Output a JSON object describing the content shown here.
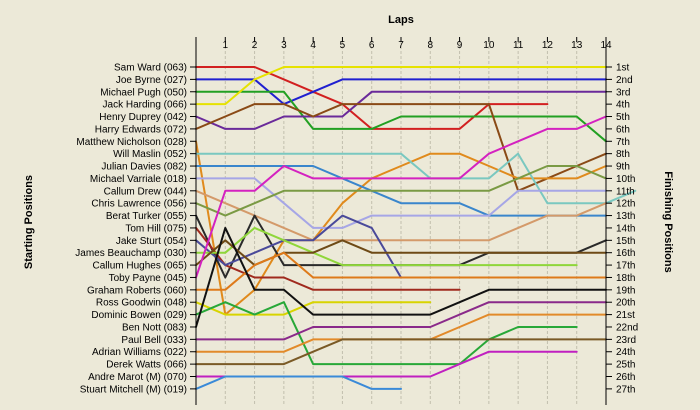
{
  "chart_data": {
    "type": "line",
    "title": "",
    "xlabel": "Laps",
    "ylabel_left": "Starting Positions",
    "ylabel_right": "Finishing Positions",
    "x_ticks": [
      1,
      2,
      3,
      4,
      5,
      6,
      7,
      8,
      9,
      10,
      11,
      12,
      13,
      14
    ],
    "start_labels": [
      "Sam Ward (063)",
      "Joe Byrne (027)",
      "Michael Pugh (050)",
      "Jack Harding (066)",
      "Henry Duprey (042)",
      "Harry Edwards (072)",
      "Matthew Nicholson (028)",
      "Will Maslin (052)",
      "Julian Davies (082)",
      "Michael Varriale (018)",
      "Callum Drew (044)",
      "Chris Lawrence (056)",
      "Berat Turker (055)",
      "Tom Hill (075)",
      "Jake Sturt (054)",
      "James Beauchamp (030)",
      "Callum Hughes (065)",
      "Toby Payne (045)",
      "Graham Roberts (060)",
      "Ross Goodwin (048)",
      "Dominic Bowen (029)",
      "Ben Nott (083)",
      "Paul Bell (033)",
      "Adrian Williams (022)",
      "Derek Watts (066)",
      "Andre Marot  (M) (070)",
      "Stuart Mitchell  (M) (019)"
    ],
    "finish_labels": [
      "1st",
      "2nd",
      "3rd",
      "4th",
      "5th",
      "6th",
      "7th",
      "8th",
      "9th",
      "10th",
      "11th",
      "12th",
      "13th",
      "14th",
      "15th",
      "16th",
      "17th",
      "18th",
      "19th",
      "20th",
      "21st",
      "22nd",
      "23rd",
      "24th",
      "25th",
      "26th",
      "27th"
    ],
    "series": [
      {
        "name": "Sam Ward (063)",
        "color": "#d22020",
        "positions": [
          1,
          1,
          1,
          2,
          3,
          4,
          6,
          6,
          6,
          6,
          4,
          4,
          4
        ]
      },
      {
        "name": "Joe Byrne (027)",
        "color": "#2020d0",
        "positions": [
          2,
          2,
          2,
          4,
          3,
          2,
          2,
          2,
          2,
          2,
          2,
          2,
          2,
          2,
          2
        ]
      },
      {
        "name": "Michael Pugh (050)",
        "color": "#22a022",
        "positions": [
          3,
          3,
          3,
          3,
          6,
          6,
          6,
          5,
          5,
          5,
          5,
          5,
          5,
          5,
          7
        ]
      },
      {
        "name": "Jack Harding (066)",
        "color": "#e6e200",
        "positions": [
          4,
          4,
          2,
          1,
          1,
          1,
          1,
          1,
          1,
          1,
          1,
          1,
          1,
          1,
          1
        ]
      },
      {
        "name": "Henry Duprey (042)",
        "color": "#6a2a9a",
        "positions": [
          5,
          6,
          6,
          5,
          5,
          5,
          3,
          3,
          3,
          3,
          3,
          3,
          3,
          3,
          3
        ]
      },
      {
        "name": "Harry Edwards (072)",
        "color": "#8a4a16",
        "positions": [
          6,
          5,
          4,
          4,
          5,
          4,
          4,
          4,
          4,
          4,
          4,
          11,
          10,
          9,
          8
        ]
      },
      {
        "name": "Matthew Nicholson (028)",
        "color": "#e08a1c",
        "positions": [
          7,
          21,
          19,
          15,
          15,
          12,
          10,
          9,
          8,
          8,
          9,
          10,
          10,
          10,
          9
        ]
      },
      {
        "name": "Will Maslin (052)",
        "color": "#7ac8c0",
        "positions": [
          8,
          8,
          8,
          8,
          8,
          8,
          8,
          8,
          10,
          10,
          10,
          8,
          12,
          12,
          12,
          11
        ]
      },
      {
        "name": "Julian Davies (082)",
        "color": "#3a86cc",
        "positions": [
          9,
          9,
          9,
          9,
          9,
          10,
          11,
          12,
          12,
          12,
          13,
          13,
          13,
          13,
          13
        ]
      },
      {
        "name": "Michael Varriale (018)",
        "color": "#a6a6e6",
        "positions": [
          10,
          10,
          10,
          12,
          14,
          14,
          13,
          13,
          13,
          13,
          13,
          11,
          11,
          11,
          11
        ]
      },
      {
        "name": "Callum Drew (044)",
        "color": "#d49a6a",
        "positions": [
          11,
          12,
          13,
          14,
          15,
          15,
          15,
          15,
          15,
          15,
          15,
          14,
          13,
          13,
          12
        ]
      },
      {
        "name": "Chris Lawrence (056)",
        "color": "#7a9a44",
        "positions": [
          12,
          13,
          12,
          11,
          11,
          11,
          11,
          11,
          11,
          11,
          11,
          10,
          9,
          9,
          10
        ]
      },
      {
        "name": "Berat Turker (055)",
        "color": "#2a2a2a",
        "positions": [
          13,
          18,
          13,
          17,
          17,
          17,
          17,
          17,
          17,
          17,
          16,
          16,
          16,
          16,
          15
        ]
      },
      {
        "name": "Tom Hill (075)",
        "color": "#a02a1e",
        "positions": [
          14,
          17,
          18,
          18,
          19,
          19,
          19,
          19,
          19,
          19
        ]
      },
      {
        "name": "Jake Sturt (054)",
        "color": "#4a4a9a",
        "positions": [
          15,
          17,
          16,
          15,
          15,
          13,
          14,
          18,
          18,
          18,
          18,
          18,
          18,
          18
        ]
      },
      {
        "name": "James Beauchamp (030)",
        "color": "#8fd63a",
        "positions": [
          16,
          16,
          14,
          15,
          16,
          17,
          17,
          17,
          17,
          17,
          17,
          17,
          17,
          17
        ]
      },
      {
        "name": "Callum Hughes (065)",
        "color": "#6e4a16",
        "positions": [
          17,
          15,
          17,
          16,
          16,
          15,
          16,
          16,
          16,
          16,
          16,
          16,
          16,
          16,
          16
        ]
      },
      {
        "name": "Toby Payne (045)",
        "color": "#d422c0",
        "positions": [
          18,
          11,
          11,
          9,
          10,
          10,
          10,
          10,
          10,
          10,
          8,
          7,
          6,
          6,
          5
        ]
      },
      {
        "name": "Graham Roberts (060)",
        "color": "#de7a1a",
        "positions": [
          19,
          19,
          17,
          16,
          18,
          18,
          18,
          18,
          18,
          18,
          18,
          18,
          18,
          18,
          18
        ]
      },
      {
        "name": "Ross Goodwin (048)",
        "color": "#d8d400",
        "positions": [
          20,
          21,
          21,
          21,
          20,
          20,
          20,
          20,
          20
        ]
      },
      {
        "name": "Dominic Bowen (029)",
        "color": "#28a838",
        "positions": [
          21,
          20,
          21,
          20,
          25,
          25,
          25,
          25,
          25,
          25,
          23,
          22,
          22,
          22
        ]
      },
      {
        "name": "Ben Nott (083)",
        "color": "#111111",
        "positions": [
          22,
          14,
          19,
          19,
          21,
          21,
          21,
          21,
          21,
          20,
          19,
          19,
          19,
          19,
          19
        ]
      },
      {
        "name": "Paul Bell (033)",
        "color": "#8a2a8a",
        "positions": [
          23,
          23,
          23,
          23,
          22,
          22,
          22,
          22,
          22,
          21,
          20,
          20,
          20,
          20,
          20
        ]
      },
      {
        "name": "Adrian Williams (022)",
        "color": "#e28a2a",
        "positions": [
          24,
          24,
          24,
          24,
          23,
          23,
          23,
          23,
          23,
          22,
          21,
          21,
          21,
          21,
          21
        ]
      },
      {
        "name": "Derek Watts (066)",
        "color": "#7a5a26",
        "positions": [
          25,
          25,
          25,
          25,
          24,
          23,
          23,
          23,
          23,
          23,
          23,
          23,
          23,
          23,
          23
        ]
      },
      {
        "name": "Andre Marot  (M) (070)",
        "color": "#c020c0",
        "positions": [
          26,
          26,
          26,
          26,
          26,
          26,
          26,
          26,
          26,
          25,
          24,
          24,
          24,
          24
        ]
      },
      {
        "name": "Stuart Mitchell  (M) (019)",
        "color": "#3a8ad8",
        "positions": [
          27,
          26,
          26,
          26,
          26,
          26,
          27,
          27
        ]
      }
    ],
    "legend": "none"
  }
}
